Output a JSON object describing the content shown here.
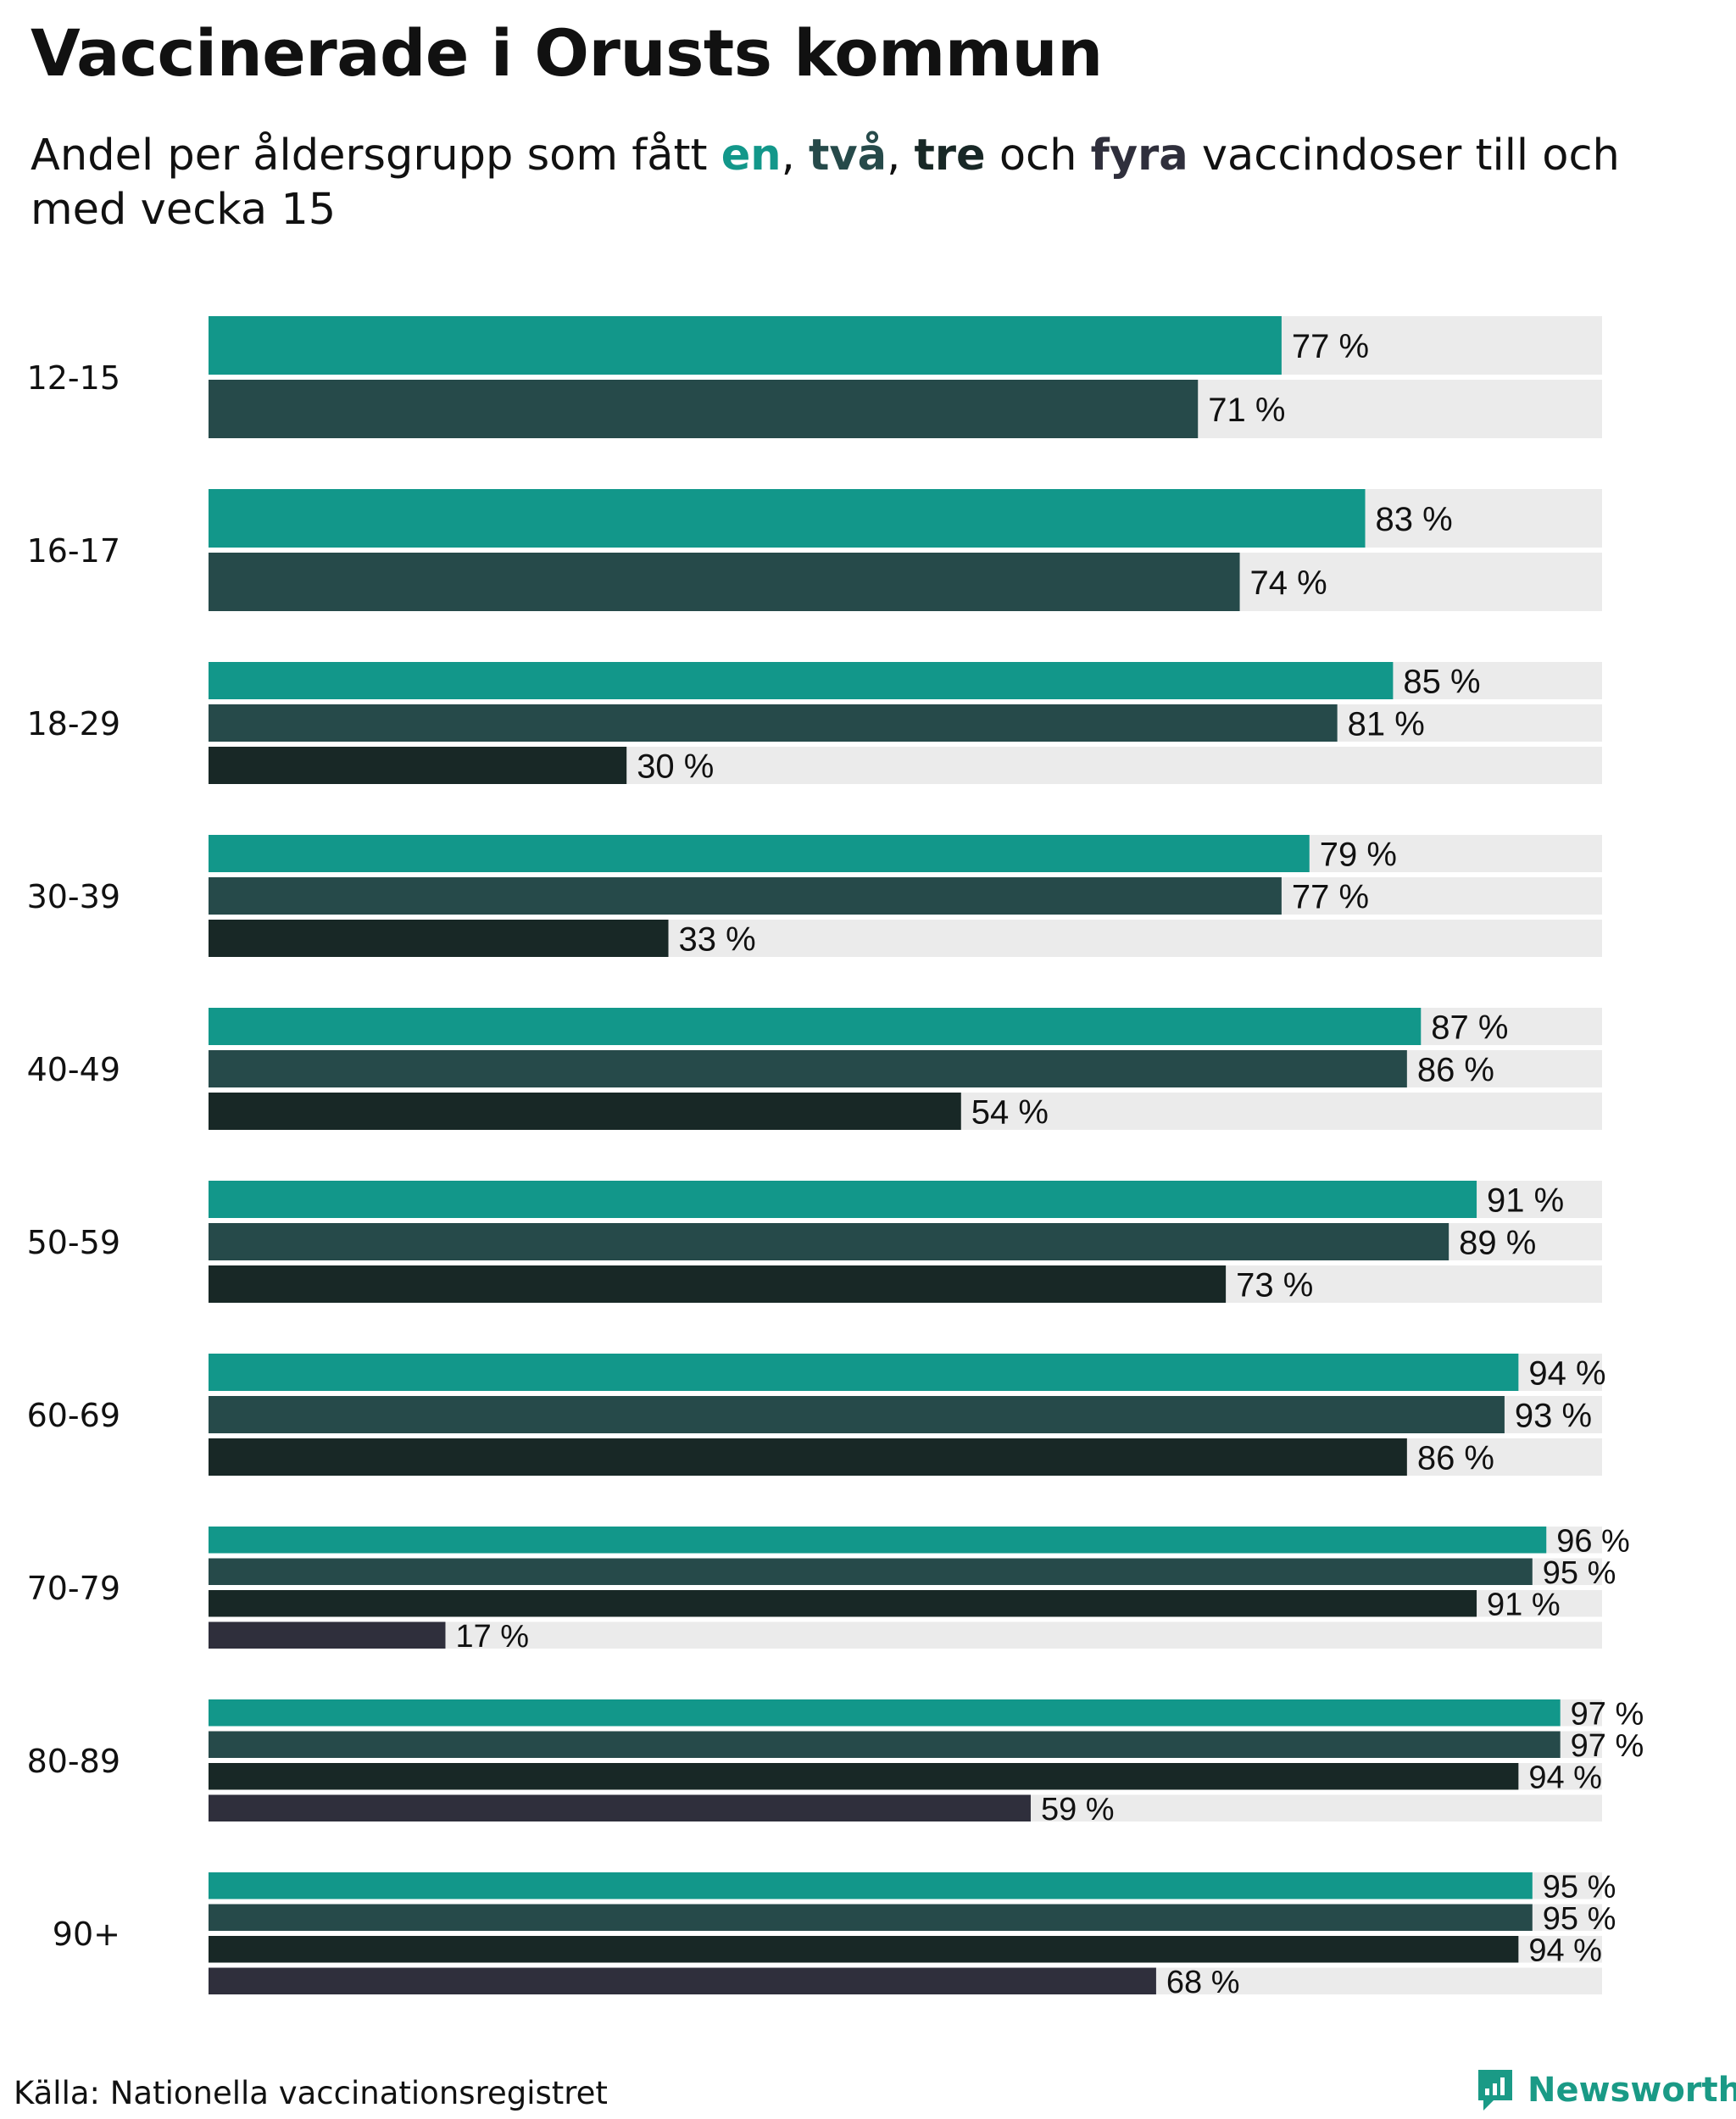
{
  "title": "Vaccinerade i Orusts kommun",
  "subtitle": {
    "prefix": "Andel per åldersgrupp som fått ",
    "k1": "en",
    "sep1": ", ",
    "k2": "två",
    "sep2": ", ",
    "k3": "tre",
    "mid": " och ",
    "k4": "fyra",
    "suffix": " vaccindoser till och med vecka 15"
  },
  "colors": {
    "dose1": "#12978a",
    "dose2": "#264a4a",
    "dose3": "#182826",
    "dose4": "#2f2f3c",
    "track": "#ebebeb",
    "text": "#111111"
  },
  "chart_data": {
    "type": "bar",
    "orientation": "horizontal",
    "title": "Vaccinerade i Orusts kommun",
    "xlim": [
      0,
      100
    ],
    "unit": "%",
    "series_names": [
      "en",
      "två",
      "tre",
      "fyra"
    ],
    "categories": [
      "12-15",
      "16-17",
      "18-29",
      "30-39",
      "40-49",
      "50-59",
      "60-69",
      "70-79",
      "80-89",
      "90+"
    ],
    "groups": [
      {
        "label": "12-15",
        "values": [
          77,
          71
        ]
      },
      {
        "label": "16-17",
        "values": [
          83,
          74
        ]
      },
      {
        "label": "18-29",
        "values": [
          85,
          81,
          30
        ]
      },
      {
        "label": "30-39",
        "values": [
          79,
          77,
          33
        ]
      },
      {
        "label": "40-49",
        "values": [
          87,
          86,
          54
        ]
      },
      {
        "label": "50-59",
        "values": [
          91,
          89,
          73
        ]
      },
      {
        "label": "60-69",
        "values": [
          94,
          93,
          86
        ]
      },
      {
        "label": "70-79",
        "values": [
          96,
          95,
          91,
          17
        ]
      },
      {
        "label": "80-89",
        "values": [
          97,
          97,
          94,
          59
        ]
      },
      {
        "label": "90+",
        "values": [
          95,
          95,
          94,
          68
        ]
      }
    ]
  },
  "footer": {
    "source": "Källa: Nationella vaccinationsregistret",
    "brand": "Newsworthy"
  }
}
